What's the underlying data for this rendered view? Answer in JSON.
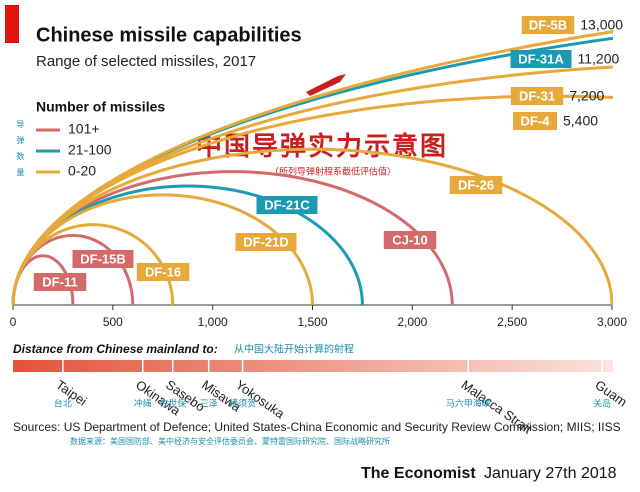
{
  "chart_data": {
    "type": "arc",
    "title": "Chinese missile capabilities",
    "subtitle": "Range of selected missiles, 2017",
    "title_cn": "中国导弹实力示意图",
    "note_cn": "（所列导弹射程系截低评估值）",
    "legend_title": "Number of missiles",
    "legend_title_cn": "导弹数量",
    "series": [
      {
        "name": "101+",
        "color": "#d46a6a",
        "categories": [
          "DF-11",
          "DF-15B",
          "CJ-10"
        ],
        "values": [
          300,
          600,
          2200
        ]
      },
      {
        "name": "21-100",
        "color": "#1a9bb3",
        "categories": [
          "DF-21C",
          "DF-31A"
        ],
        "values": [
          1750,
          11200
        ],
        "value_labels": [
          null,
          "11,200"
        ]
      },
      {
        "name": "0-20",
        "color": "#e6a93a",
        "categories": [
          "DF-16",
          "DF-21D",
          "DF-26",
          "DF-4",
          "DF-31",
          "DF-5B"
        ],
        "values": [
          800,
          1500,
          3000,
          5400,
          7200,
          13000
        ],
        "value_labels": [
          null,
          null,
          null,
          "5,400",
          "7,200",
          "13,000"
        ]
      }
    ],
    "xlim": [
      0,
      3000
    ],
    "xticks": [
      0,
      500,
      {
        "value": 1000,
        "label": "1,000"
      },
      {
        "value": 1500,
        "label": "1,500"
      },
      {
        "value": 2000,
        "label": "2,000"
      },
      {
        "value": 2500,
        "label": "2,500"
      },
      {
        "value": 3000,
        "label": "3,000"
      }
    ],
    "distance_title": "Distance from Chinese mainland to:",
    "distance_title_cn": "从中国大陆开始计算的射程",
    "places": [
      {
        "name": "Taipei",
        "name_cn": "台北",
        "distance": 250
      },
      {
        "name": "Okinawa",
        "name_cn": "冲绳",
        "distance": 650
      },
      {
        "name": "Sasebo",
        "name_cn": "佐世保",
        "distance": 800
      },
      {
        "name": "Misawa",
        "name_cn": "三泽",
        "distance": 980
      },
      {
        "name": "Yokosuka",
        "name_cn": "横须贺",
        "distance": 1150
      },
      {
        "name": "Malacca Strait",
        "name_cn": "马六甲海峡",
        "distance": 2280
      },
      {
        "name": "Guam",
        "name_cn": "关岛",
        "distance": 2950
      }
    ],
    "sources": "Sources: US Department of Defence; United States-China Economic and Security Review Commission; MIIS; IISS",
    "sources_cn": "数据来源：美国国防部、美中经济与安全评估委员会、蒙特雷国际研究院、国际战略研究所",
    "brand": "The Economist",
    "date": "January 27th 2018"
  }
}
